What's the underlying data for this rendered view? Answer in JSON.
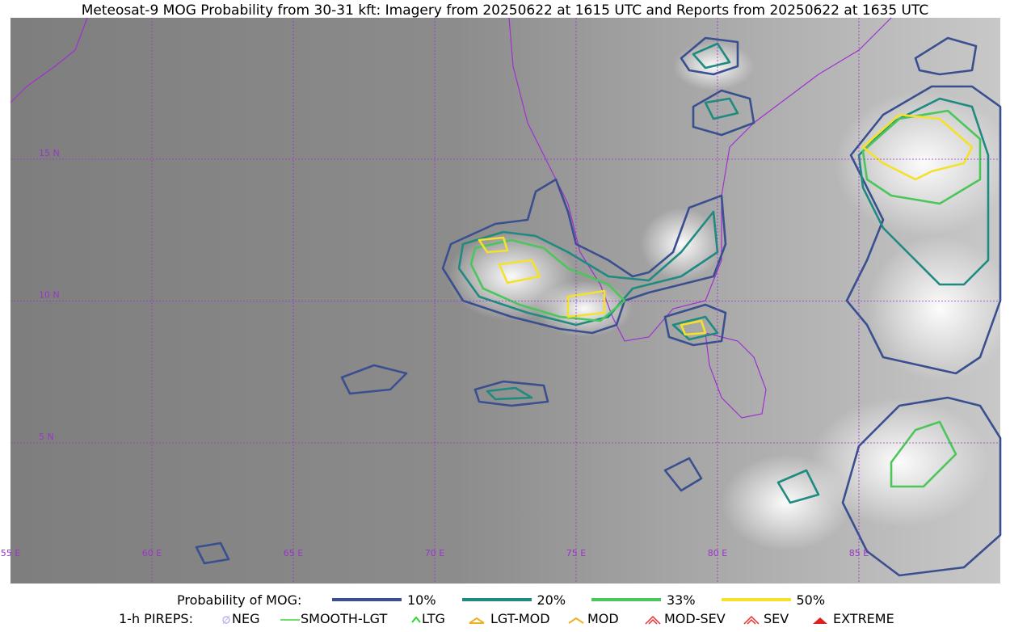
{
  "title": "Meteosat-9 MOG Probability from 30-31 kft: Imagery from 20250622 at 1615 UTC and Reports from 20250622 at 1635 UTC",
  "map": {
    "lat_labels": [
      "15 N",
      "10 N",
      "5 N"
    ],
    "lon_labels": [
      "55 E",
      "60 E",
      "65 E",
      "70 E",
      "75 E",
      "80 E",
      "85 E"
    ]
  },
  "legend": {
    "mog_title": "Probability of MOG:",
    "mog_items": [
      "10%",
      "20%",
      "33%",
      "50%"
    ],
    "pirep_title": "1-h PIREPS:",
    "pirep_items": [
      "NEG",
      "SMOOTH-LGT",
      "LTG",
      "LGT-MOD",
      "MOD",
      "MOD-SEV",
      "SEV",
      "EXTREME"
    ]
  }
}
